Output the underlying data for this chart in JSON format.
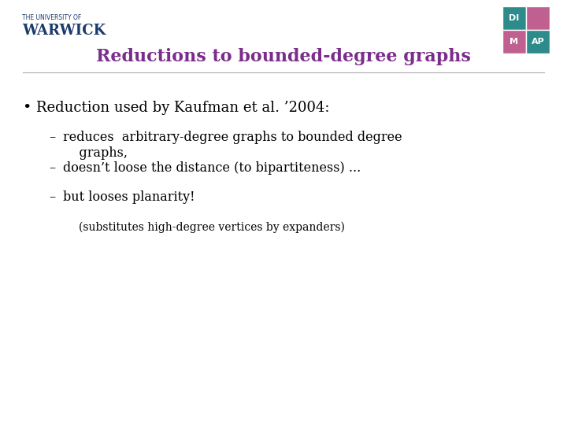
{
  "title": "Reductions to bounded-degree graphs",
  "title_color": "#7B2D8B",
  "title_fontsize": 16,
  "background_color": "#FFFFFF",
  "bullet_text": "Reduction used by Kaufman et al. ’2004:",
  "bullet_fontsize": 13,
  "sub_bullets": [
    "reduces  arbitrary-degree graphs to bounded degree\n    graphs,",
    "doesn’t loose the distance (to bipartiteness) ...",
    "but looses planarity!"
  ],
  "sub_bullet_fontsize": 11.5,
  "sub_sub_bullet": "(substitutes high-degree vertices by expanders)",
  "sub_sub_fontsize": 10,
  "warwick_text": "WARWICK",
  "warwick_color": "#1B3A6B",
  "warwick_small_text": "THE UNIVERSITY OF",
  "dimap_colors_grid": [
    [
      "#2E8B8B",
      "#B05090"
    ],
    [
      "#B05090",
      "#2E8B8B"
    ]
  ],
  "dimap_letters": [
    [
      "DI",
      ""
    ],
    [
      "M",
      "AP"
    ]
  ]
}
